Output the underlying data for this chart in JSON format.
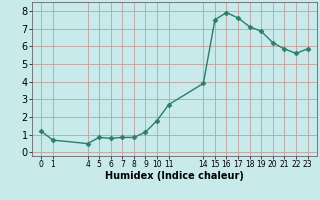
{
  "x": [
    0,
    1,
    4,
    5,
    6,
    7,
    8,
    9,
    10,
    11,
    14,
    15,
    16,
    17,
    18,
    19,
    20,
    21,
    22,
    23
  ],
  "y": [
    1.2,
    0.7,
    0.5,
    0.85,
    0.8,
    0.85,
    0.85,
    1.15,
    1.8,
    2.7,
    3.9,
    7.5,
    7.9,
    7.6,
    7.1,
    6.85,
    6.2,
    5.85,
    5.6,
    5.85
  ],
  "x_ticks": [
    0,
    1,
    4,
    5,
    6,
    7,
    8,
    9,
    10,
    11,
    14,
    15,
    16,
    17,
    18,
    19,
    20,
    21,
    22,
    23
  ],
  "x_tick_labels": [
    "0",
    "1",
    "4",
    "5",
    "6",
    "7",
    "8",
    "9",
    "10",
    "11",
    "14",
    "15",
    "16",
    "17",
    "18",
    "19",
    "20",
    "21",
    "22",
    "23"
  ],
  "y_ticks": [
    0,
    1,
    2,
    3,
    4,
    5,
    6,
    7,
    8
  ],
  "xlabel": "Humidex (Indice chaleur)",
  "ylim": [
    -0.2,
    8.5
  ],
  "xlim": [
    -0.8,
    23.8
  ],
  "line_color": "#2d7d6e",
  "marker": "D",
  "marker_size": 2.5,
  "bg_color": "#c8eaea",
  "grid_color": "#c0a0a0",
  "line_width": 1.0,
  "xlabel_fontsize": 7,
  "tick_fontsize_x": 5.5,
  "tick_fontsize_y": 7
}
